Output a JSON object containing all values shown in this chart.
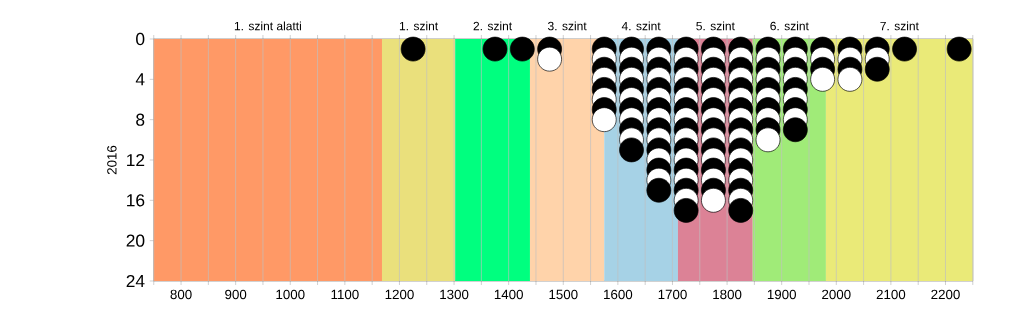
{
  "chart_data": {
    "type": "scatter",
    "ylabel": "2016",
    "marker": "circle",
    "grid": "x",
    "xlim": [
      750,
      2250
    ],
    "ylim": [
      24,
      0
    ],
    "xticks": [
      {
        "value": 750,
        "label": null
      },
      800,
      {
        "value": 850,
        "label": null
      },
      900,
      {
        "value": 950,
        "label": null
      },
      1000,
      {
        "value": 1050,
        "label": null
      },
      1100,
      {
        "value": 1150,
        "label": null
      },
      1200,
      {
        "value": 1250,
        "label": null
      },
      1300,
      {
        "value": 1350,
        "label": null
      },
      1400,
      {
        "value": 1450,
        "label": null
      },
      1500,
      {
        "value": 1550,
        "label": null
      },
      1600,
      {
        "value": 1650,
        "label": null
      },
      1700,
      {
        "value": 1750,
        "label": null
      },
      1800,
      {
        "value": 1850,
        "label": null
      },
      1900,
      {
        "value": 1950,
        "label": null
      },
      2000,
      {
        "value": 2050,
        "label": null
      },
      2100,
      {
        "value": 2150,
        "label": null
      },
      2200,
      {
        "value": 2250,
        "label": null
      }
    ],
    "yticks": [
      0,
      4,
      8,
      12,
      16,
      20,
      24
    ],
    "bands": [
      {
        "axis": "x",
        "from": 750,
        "to": 1168,
        "label": "1. szint alatti",
        "color": "#ff9966"
      },
      {
        "axis": "x",
        "from": 1168,
        "to": 1302,
        "label": "1. szint",
        "color": "#eae07c"
      },
      {
        "axis": "x",
        "from": 1302,
        "to": 1439,
        "label": "2. szint",
        "color": "#00ff7f"
      },
      {
        "axis": "x",
        "from": 1439,
        "to": 1575,
        "label": "3. szint",
        "color": "#ffd3aa"
      },
      {
        "axis": "x",
        "from": 1575,
        "to": 1710,
        "label": "4. szint",
        "color": "#a6d2e6"
      },
      {
        "axis": "x",
        "from": 1710,
        "to": 1847,
        "label": "5. szint",
        "color": "#dc8296"
      },
      {
        "axis": "x",
        "from": 1847,
        "to": 1981,
        "label": "6. szint",
        "color": "#a0eb78"
      },
      {
        "axis": "x",
        "from": 1981,
        "to": 2250,
        "label": "7. szint",
        "color": "#eaea78"
      }
    ],
    "series": [
      {
        "x": [
          1225,
          1375,
          1425,
          1475,
          1475,
          1575,
          1575,
          1575,
          1575,
          1575,
          1575,
          1575,
          1575,
          1625,
          1625,
          1625,
          1625,
          1625,
          1625,
          1625,
          1625,
          1625,
          1625,
          1625,
          1675,
          1675,
          1675,
          1675,
          1675,
          1675,
          1675,
          1675,
          1675,
          1675,
          1675,
          1675,
          1675,
          1675,
          1675,
          1725,
          1725,
          1725,
          1725,
          1725,
          1725,
          1725,
          1725,
          1725,
          1725,
          1725,
          1725,
          1725,
          1725,
          1725,
          1725,
          1725,
          1775,
          1775,
          1775,
          1775,
          1775,
          1775,
          1775,
          1775,
          1775,
          1775,
          1775,
          1775,
          1775,
          1775,
          1775,
          1775,
          1825,
          1825,
          1825,
          1825,
          1825,
          1825,
          1825,
          1825,
          1825,
          1825,
          1825,
          1825,
          1825,
          1825,
          1825,
          1825,
          1825,
          1875,
          1875,
          1875,
          1875,
          1875,
          1875,
          1875,
          1875,
          1875,
          1875,
          1925,
          1925,
          1925,
          1925,
          1925,
          1925,
          1925,
          1925,
          1925,
          1975,
          1975,
          1975,
          1975,
          2025,
          2025,
          2025,
          2025,
          2075,
          2075,
          2075,
          2125,
          2225
        ],
        "values": [
          1,
          1,
          1,
          1,
          2,
          1,
          2,
          3,
          4,
          5,
          6,
          7,
          8,
          1,
          2,
          3,
          4,
          5,
          6,
          7,
          8,
          9,
          10,
          11,
          1,
          2,
          3,
          4,
          5,
          6,
          7,
          8,
          9,
          10,
          11,
          12,
          13,
          14,
          15,
          1,
          2,
          3,
          4,
          5,
          6,
          7,
          8,
          9,
          10,
          11,
          12,
          13,
          14,
          15,
          16,
          17,
          1,
          2,
          3,
          4,
          5,
          6,
          7,
          8,
          9,
          10,
          11,
          12,
          13,
          14,
          15,
          16,
          1,
          2,
          3,
          4,
          5,
          6,
          7,
          8,
          9,
          10,
          11,
          12,
          13,
          14,
          15,
          16,
          17,
          1,
          2,
          3,
          4,
          5,
          6,
          7,
          8,
          9,
          10,
          1,
          2,
          3,
          4,
          5,
          6,
          7,
          8,
          9,
          1,
          2,
          3,
          4,
          1,
          2,
          3,
          4,
          1,
          2,
          3,
          1,
          1
        ],
        "colors": [
          "#000000",
          "#000000",
          "#000000",
          "#000000",
          "#ffffff",
          "#000000",
          "#ffffff",
          "#000000",
          "#ffffff",
          "#000000",
          "#ffffff",
          "#000000",
          "#ffffff",
          "#000000",
          "#ffffff",
          "#000000",
          "#ffffff",
          "#000000",
          "#ffffff",
          "#000000",
          "#ffffff",
          "#000000",
          "#ffffff",
          "#000000",
          "#000000",
          "#ffffff",
          "#000000",
          "#ffffff",
          "#000000",
          "#ffffff",
          "#000000",
          "#ffffff",
          "#000000",
          "#ffffff",
          "#000000",
          "#ffffff",
          "#000000",
          "#ffffff",
          "#000000",
          "#000000",
          "#ffffff",
          "#000000",
          "#ffffff",
          "#000000",
          "#ffffff",
          "#000000",
          "#ffffff",
          "#000000",
          "#ffffff",
          "#000000",
          "#ffffff",
          "#000000",
          "#ffffff",
          "#000000",
          "#ffffff",
          "#000000",
          "#000000",
          "#ffffff",
          "#000000",
          "#ffffff",
          "#000000",
          "#ffffff",
          "#000000",
          "#ffffff",
          "#000000",
          "#ffffff",
          "#000000",
          "#ffffff",
          "#000000",
          "#ffffff",
          "#000000",
          "#ffffff",
          "#000000",
          "#ffffff",
          "#000000",
          "#ffffff",
          "#000000",
          "#ffffff",
          "#000000",
          "#ffffff",
          "#000000",
          "#ffffff",
          "#000000",
          "#ffffff",
          "#000000",
          "#ffffff",
          "#000000",
          "#ffffff",
          "#000000",
          "#000000",
          "#ffffff",
          "#000000",
          "#ffffff",
          "#000000",
          "#ffffff",
          "#000000",
          "#ffffff",
          "#000000",
          "#ffffff",
          "#000000",
          "#ffffff",
          "#000000",
          "#ffffff",
          "#000000",
          "#ffffff",
          "#000000",
          "#ffffff",
          "#000000",
          "#000000",
          "#ffffff",
          "#000000",
          "#ffffff",
          "#000000",
          "#ffffff",
          "#000000",
          "#ffffff",
          "#000000",
          "#ffffff",
          "#000000",
          "#000000",
          "#000000"
        ]
      }
    ]
  }
}
